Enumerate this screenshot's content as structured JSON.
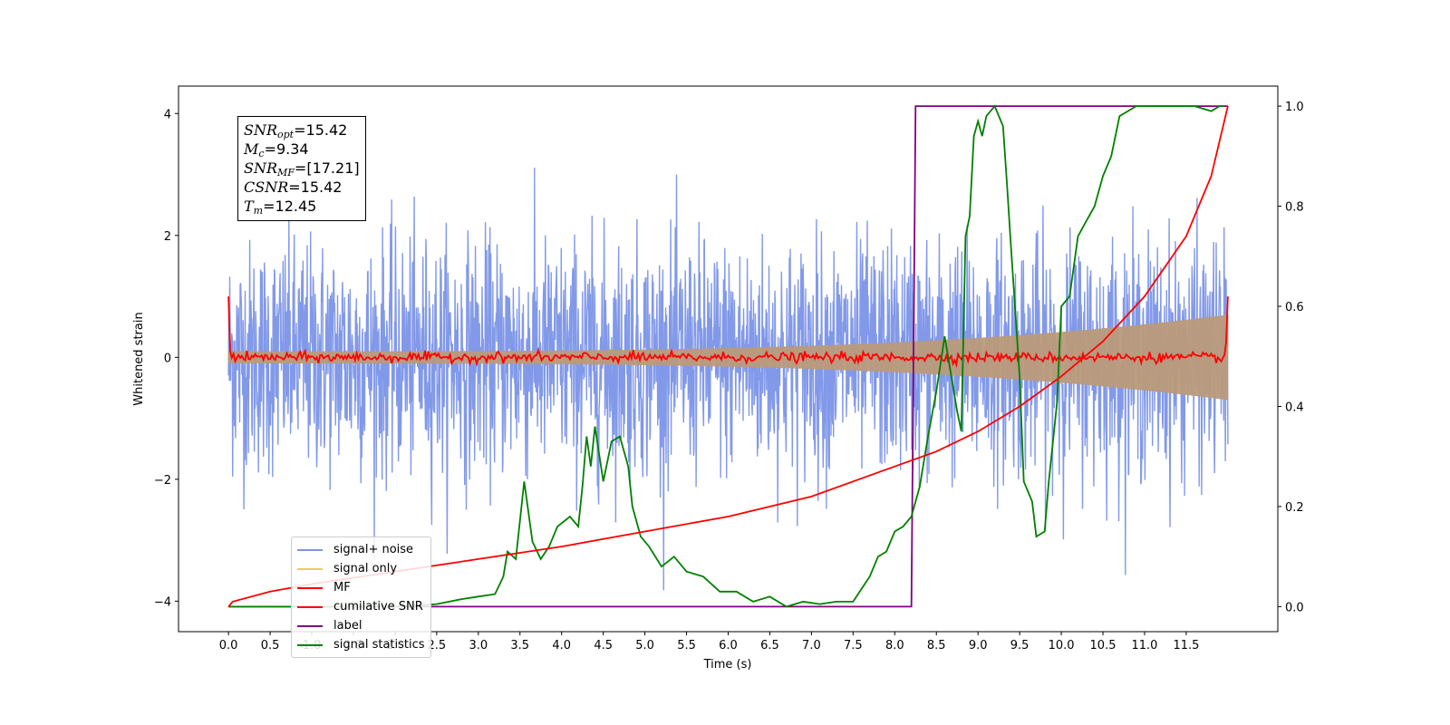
{
  "chart_data": {
    "type": "line",
    "xlabel": "Time (s)",
    "ylabel": "Whitened strain",
    "xlim": [
      -0.6,
      12.6
    ],
    "ylim": [
      -4.5,
      4.45
    ],
    "y2lim": [
      -0.05,
      1.04
    ],
    "xticks": [
      "0.0",
      "0.5",
      "1.0",
      "1.5",
      "2.0",
      "2.5",
      "3.0",
      "3.5",
      "4.0",
      "4.5",
      "5.0",
      "5.5",
      "6.0",
      "6.5",
      "7.0",
      "7.5",
      "8.0",
      "8.5",
      "9.0",
      "9.5",
      "10.0",
      "10.5",
      "11.0",
      "11.5"
    ],
    "yticks": [
      "−4",
      "−2",
      "0",
      "2",
      "4"
    ],
    "y2ticks": [
      "0.0",
      "0.2",
      "0.4",
      "0.6",
      "0.8",
      "1.0"
    ],
    "annotation": {
      "snr_opt": "15.42",
      "mc": "9.34",
      "snr_mf": "[17.21]",
      "csnr": "15.42",
      "tm": "12.45"
    },
    "series": [
      {
        "name": "signal+ noise",
        "color": "#7b93e8",
        "axis": "left",
        "note": "white noise, std ~1, spans 0–12 s"
      },
      {
        "name": "signal only",
        "color": "#f5b94a",
        "axis": "left",
        "note": "chirp, amplitude grows from ~0.1 to ~0.7"
      },
      {
        "name": "MF",
        "color": "#ff0000",
        "axis": "left",
        "note": "matched-filter output, ~0 with spikes of 1.0 at both ends"
      },
      {
        "name": "cumilative SNR",
        "color": "#ff0000",
        "axis": "right",
        "x": [
          0.0,
          0.05,
          0.5,
          1.0,
          2.0,
          3.0,
          4.0,
          5.0,
          6.0,
          7.0,
          8.0,
          8.5,
          9.0,
          9.5,
          10.0,
          10.5,
          11.0,
          11.5,
          11.8,
          12.0
        ],
        "y": [
          0.0,
          0.01,
          0.03,
          0.045,
          0.07,
          0.095,
          0.12,
          0.15,
          0.18,
          0.22,
          0.28,
          0.31,
          0.35,
          0.4,
          0.46,
          0.53,
          0.62,
          0.74,
          0.86,
          1.0
        ]
      },
      {
        "name": "label",
        "color": "#800080",
        "axis": "right",
        "x": [
          0.0,
          8.2,
          8.25,
          12.0
        ],
        "y": [
          0.0,
          0.0,
          1.0,
          1.0
        ]
      },
      {
        "name": "signal statistics",
        "color": "#008000",
        "axis": "right",
        "x": [
          0.0,
          0.5,
          1.0,
          1.5,
          2.0,
          2.5,
          2.8,
          3.0,
          3.2,
          3.3,
          3.35,
          3.45,
          3.55,
          3.6,
          3.65,
          3.75,
          3.85,
          3.95,
          4.1,
          4.2,
          4.25,
          4.3,
          4.35,
          4.4,
          4.5,
          4.6,
          4.7,
          4.8,
          4.85,
          4.95,
          5.05,
          5.2,
          5.35,
          5.5,
          5.7,
          5.9,
          6.1,
          6.3,
          6.5,
          6.7,
          6.9,
          7.1,
          7.3,
          7.5,
          7.7,
          7.8,
          7.9,
          8.0,
          8.1,
          8.2,
          8.3,
          8.4,
          8.5,
          8.6,
          8.7,
          8.75,
          8.8,
          8.85,
          8.9,
          8.95,
          9.0,
          9.05,
          9.1,
          9.2,
          9.3,
          9.35,
          9.4,
          9.5,
          9.55,
          9.65,
          9.7,
          9.8,
          9.85,
          9.95,
          10.0,
          10.1,
          10.2,
          10.3,
          10.4,
          10.5,
          10.6,
          10.7,
          10.8,
          10.9,
          11.0,
          11.1,
          11.2,
          11.4,
          11.6,
          11.8,
          11.9,
          11.95
        ],
        "y": [
          0.0,
          0.0,
          0.0,
          0.0,
          0.0,
          0.005,
          0.015,
          0.02,
          0.025,
          0.06,
          0.11,
          0.095,
          0.25,
          0.19,
          0.13,
          0.095,
          0.12,
          0.16,
          0.18,
          0.16,
          0.24,
          0.34,
          0.28,
          0.36,
          0.25,
          0.33,
          0.34,
          0.28,
          0.2,
          0.14,
          0.12,
          0.08,
          0.1,
          0.07,
          0.06,
          0.03,
          0.03,
          0.01,
          0.02,
          0.0,
          0.01,
          0.005,
          0.01,
          0.01,
          0.06,
          0.1,
          0.11,
          0.15,
          0.16,
          0.18,
          0.24,
          0.34,
          0.43,
          0.54,
          0.44,
          0.39,
          0.35,
          0.74,
          0.78,
          0.94,
          0.97,
          0.94,
          0.98,
          1.0,
          0.96,
          0.84,
          0.71,
          0.46,
          0.25,
          0.21,
          0.14,
          0.15,
          0.25,
          0.41,
          0.6,
          0.62,
          0.74,
          0.77,
          0.8,
          0.86,
          0.9,
          0.98,
          0.99,
          1.0,
          1.0,
          1.0,
          1.0,
          1.0,
          1.0,
          0.99,
          1.0,
          1.0
        ]
      }
    ]
  }
}
